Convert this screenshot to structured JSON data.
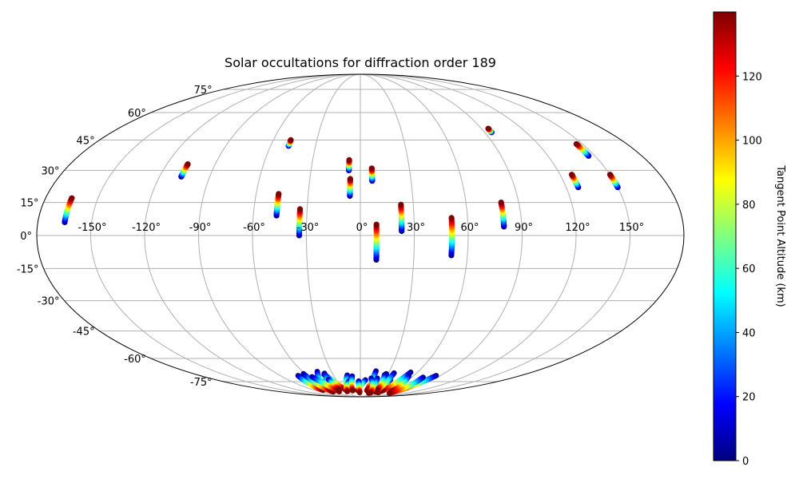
{
  "chart_data": {
    "type": "scatter",
    "projection": "mollweide",
    "title": "Solar occultations for diffraction order 189",
    "lon_ticks": [
      "-150°",
      "-120°",
      "-90°",
      "-60°",
      "-30°",
      "0°",
      "30°",
      "60°",
      "90°",
      "120°",
      "150°"
    ],
    "lat_ticks": [
      "75°",
      "60°",
      "45°",
      "30°",
      "15°",
      "0°",
      "-15°",
      "-30°",
      "-45°",
      "-60°",
      "-75°"
    ],
    "grid": true,
    "colorbar": {
      "label": "Tangent Point Altitude (km)",
      "ticks": [
        "0",
        "20",
        "40",
        "60",
        "80",
        "100",
        "120"
      ],
      "range": [
        0,
        140
      ],
      "colormap": "jet",
      "colors": [
        "#00007f",
        "#0000ff",
        "#007fff",
        "#00ffff",
        "#7fff7f",
        "#ffff00",
        "#ff7f00",
        "#ff0000",
        "#7f0000"
      ]
    },
    "series": [
      {
        "lon": -165,
        "lat_bottom": 6,
        "lat_top": 17
      },
      {
        "lon": -107,
        "lat_bottom": 27,
        "lat_top": 33
      },
      {
        "lon": -48,
        "lat_bottom": 42,
        "lat_top": 45
      },
      {
        "lon": -47,
        "lat_bottom": 9,
        "lat_top": 19
      },
      {
        "lon": -34,
        "lat_bottom": 0,
        "lat_top": 12
      },
      {
        "lon": -7,
        "lat_bottom": 30,
        "lat_top": 35
      },
      {
        "lon": -6,
        "lat_bottom": 18,
        "lat_top": 26
      },
      {
        "lon": 7,
        "lat_bottom": 25,
        "lat_top": 31
      },
      {
        "lon": 9,
        "lat_bottom": -11,
        "lat_top": 5
      },
      {
        "lon": 23,
        "lat_bottom": 2,
        "lat_top": 14
      },
      {
        "lon": 51,
        "lat_bottom": -9,
        "lat_top": 8
      },
      {
        "lon": 80,
        "lat_bottom": 4,
        "lat_top": 15
      },
      {
        "lon": 95,
        "lat_bottom": 49,
        "lat_top": 51
      },
      {
        "lon": 127,
        "lat_bottom": 22,
        "lat_top": 28
      },
      {
        "lon": 146,
        "lat_bottom": 37,
        "lat_top": 43
      },
      {
        "lon": 150,
        "lat_bottom": 22,
        "lat_top": 28
      }
    ],
    "polar_dense_region": {
      "lat_range": [
        -85,
        -67
      ],
      "lon_range": [
        -90,
        90
      ],
      "altitude_range": [
        0,
        140
      ]
    }
  }
}
